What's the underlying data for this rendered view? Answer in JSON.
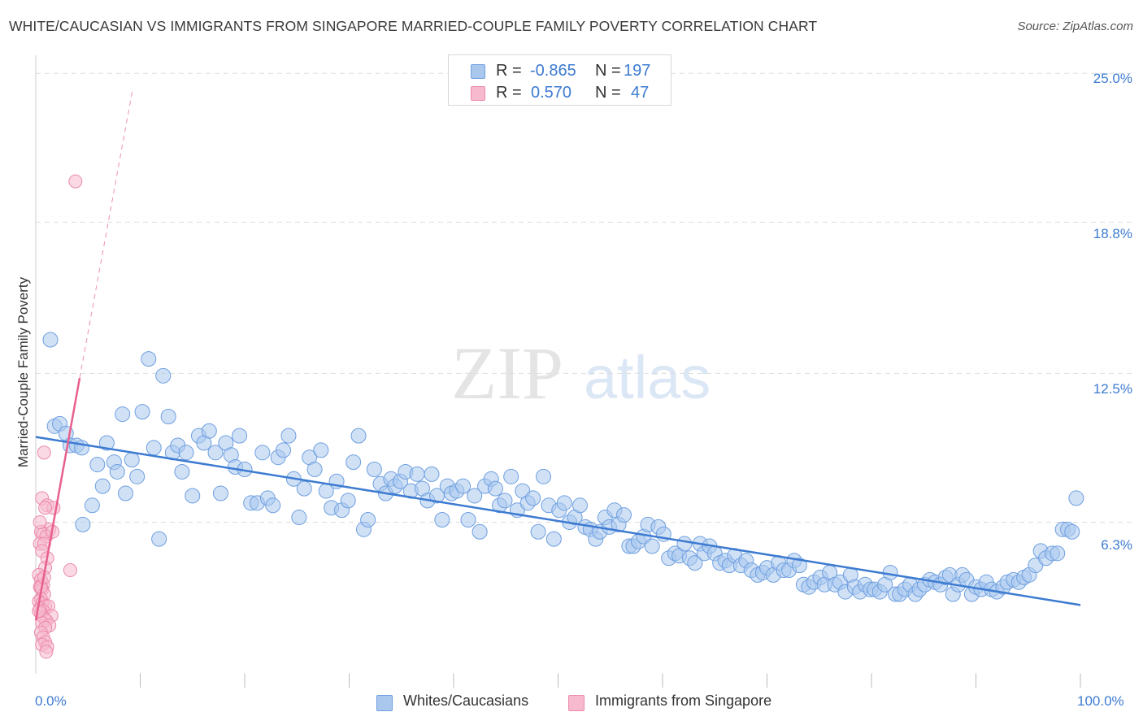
{
  "title": "WHITE/CAUCASIAN VS IMMIGRANTS FROM SINGAPORE MARRIED-COUPLE FAMILY POVERTY CORRELATION CHART",
  "source": "Source: ZipAtlas.com",
  "watermark": {
    "zip": "ZIP",
    "atlas": "atlas"
  },
  "stats": {
    "row1": {
      "r_label": "R =",
      "r_value": "-0.865",
      "n_label": "N =",
      "n_value": "197"
    },
    "row2": {
      "r_label": "R =",
      "r_value": "0.570",
      "n_label": "N =",
      "n_value": "47"
    }
  },
  "legend": {
    "blue_label": "Whites/Caucasians",
    "pink_label": "Immigrants from Singapore"
  },
  "colors": {
    "blue": "#3d7bd1",
    "blue_fill": "#aac8ee",
    "pink": "#e8608e",
    "pink_fill": "#f6b9cd",
    "grid": "#dddddd"
  },
  "chart_data": {
    "type": "scatter",
    "title": "WHITE/CAUCASIAN VS IMMIGRANTS FROM SINGAPORE MARRIED-COUPLE FAMILY POVERTY CORRELATION CHART",
    "xlabel": "",
    "ylabel": "Married-Couple Family Poverty",
    "xlim": [
      0,
      100
    ],
    "ylim": [
      0,
      25.6
    ],
    "x_tick_labels": [
      "0.0%",
      "100.0%"
    ],
    "y_ticks": [
      6.3,
      12.5,
      18.8,
      25.0
    ],
    "y_tick_labels": [
      "6.3%",
      "12.5%",
      "18.8%",
      "25.0%"
    ],
    "grid": "horizontal dashed",
    "legend_position": "bottom-center",
    "series": [
      {
        "name": "Whites/Caucasians",
        "color": "#3d7bd1",
        "trend": {
          "x": [
            0,
            100
          ],
          "y": [
            9.85,
            2.85
          ]
        },
        "points": [
          [
            1.4,
            13.9
          ],
          [
            1.8,
            10.3
          ],
          [
            2.3,
            10.4
          ],
          [
            2.9,
            10.0
          ],
          [
            3.3,
            9.5
          ],
          [
            3.9,
            9.5
          ],
          [
            4.4,
            9.4
          ],
          [
            4.5,
            6.2
          ],
          [
            5.4,
            7.0
          ],
          [
            5.9,
            8.7
          ],
          [
            6.4,
            7.8
          ],
          [
            6.8,
            9.6
          ],
          [
            7.5,
            8.8
          ],
          [
            7.8,
            8.4
          ],
          [
            8.3,
            10.8
          ],
          [
            8.6,
            7.5
          ],
          [
            9.2,
            8.9
          ],
          [
            9.7,
            8.2
          ],
          [
            10.2,
            10.9
          ],
          [
            10.8,
            13.1
          ],
          [
            11.3,
            9.4
          ],
          [
            11.8,
            5.6
          ],
          [
            12.2,
            12.4
          ],
          [
            12.7,
            10.7
          ],
          [
            13.1,
            9.2
          ],
          [
            13.6,
            9.5
          ],
          [
            14.0,
            8.4
          ],
          [
            14.4,
            9.2
          ],
          [
            15.0,
            7.4
          ],
          [
            15.6,
            9.9
          ],
          [
            16.1,
            9.6
          ],
          [
            16.6,
            10.1
          ],
          [
            17.2,
            9.2
          ],
          [
            17.7,
            7.5
          ],
          [
            18.2,
            9.6
          ],
          [
            18.7,
            9.1
          ],
          [
            19.1,
            8.6
          ],
          [
            19.5,
            9.9
          ],
          [
            20.0,
            8.5
          ],
          [
            20.6,
            7.1
          ],
          [
            21.2,
            7.1
          ],
          [
            21.7,
            9.2
          ],
          [
            22.2,
            7.3
          ],
          [
            22.7,
            7.0
          ],
          [
            23.2,
            9.0
          ],
          [
            23.7,
            9.3
          ],
          [
            24.2,
            9.9
          ],
          [
            24.7,
            8.1
          ],
          [
            25.2,
            6.5
          ],
          [
            25.7,
            7.7
          ],
          [
            26.2,
            9.0
          ],
          [
            26.7,
            8.5
          ],
          [
            27.3,
            9.3
          ],
          [
            27.8,
            7.6
          ],
          [
            28.3,
            6.9
          ],
          [
            28.8,
            8.0
          ],
          [
            29.3,
            6.8
          ],
          [
            29.9,
            7.2
          ],
          [
            30.4,
            8.8
          ],
          [
            30.9,
            9.9
          ],
          [
            31.4,
            6.0
          ],
          [
            31.8,
            6.4
          ],
          [
            32.4,
            8.5
          ],
          [
            33.0,
            7.9
          ],
          [
            33.5,
            7.5
          ],
          [
            34.0,
            8.1
          ],
          [
            34.4,
            7.8
          ],
          [
            34.9,
            8.0
          ],
          [
            35.4,
            8.4
          ],
          [
            35.9,
            7.6
          ],
          [
            36.5,
            8.3
          ],
          [
            37.0,
            7.7
          ],
          [
            37.5,
            7.2
          ],
          [
            37.9,
            8.3
          ],
          [
            38.4,
            7.4
          ],
          [
            38.9,
            6.4
          ],
          [
            39.4,
            7.8
          ],
          [
            39.8,
            7.5
          ],
          [
            40.3,
            7.6
          ],
          [
            40.9,
            7.8
          ],
          [
            41.4,
            6.4
          ],
          [
            42.0,
            7.4
          ],
          [
            42.5,
            5.9
          ],
          [
            43.0,
            7.8
          ],
          [
            43.6,
            8.1
          ],
          [
            44.0,
            7.7
          ],
          [
            44.4,
            7.0
          ],
          [
            44.9,
            7.2
          ],
          [
            45.5,
            8.2
          ],
          [
            46.1,
            6.8
          ],
          [
            46.6,
            7.6
          ],
          [
            47.1,
            7.1
          ],
          [
            47.6,
            7.3
          ],
          [
            48.1,
            5.9
          ],
          [
            48.6,
            8.2
          ],
          [
            49.1,
            7.0
          ],
          [
            49.6,
            5.6
          ],
          [
            50.1,
            6.8
          ],
          [
            50.6,
            7.1
          ],
          [
            51.1,
            6.3
          ],
          [
            51.6,
            6.5
          ],
          [
            52.1,
            7.0
          ],
          [
            52.6,
            6.1
          ],
          [
            53.1,
            6.0
          ],
          [
            53.6,
            5.6
          ],
          [
            54.0,
            5.9
          ],
          [
            54.5,
            6.5
          ],
          [
            54.9,
            6.1
          ],
          [
            55.4,
            6.8
          ],
          [
            55.8,
            6.2
          ],
          [
            56.3,
            6.6
          ],
          [
            56.8,
            5.3
          ],
          [
            57.2,
            5.3
          ],
          [
            57.7,
            5.5
          ],
          [
            58.2,
            5.7
          ],
          [
            58.6,
            6.2
          ],
          [
            59.0,
            5.3
          ],
          [
            59.6,
            6.1
          ],
          [
            60.1,
            5.8
          ],
          [
            60.6,
            4.8
          ],
          [
            61.2,
            5.0
          ],
          [
            61.6,
            4.9
          ],
          [
            62.1,
            5.4
          ],
          [
            62.6,
            4.8
          ],
          [
            63.1,
            4.6
          ],
          [
            63.6,
            5.4
          ],
          [
            64.0,
            5.0
          ],
          [
            64.5,
            5.3
          ],
          [
            65.0,
            5.0
          ],
          [
            65.5,
            4.6
          ],
          [
            66.0,
            4.7
          ],
          [
            66.4,
            4.5
          ],
          [
            66.9,
            4.9
          ],
          [
            67.5,
            4.5
          ],
          [
            68.0,
            4.7
          ],
          [
            68.5,
            4.3
          ],
          [
            69.1,
            4.1
          ],
          [
            69.6,
            4.2
          ],
          [
            70.0,
            4.4
          ],
          [
            70.6,
            4.1
          ],
          [
            71.1,
            4.6
          ],
          [
            71.6,
            4.3
          ],
          [
            72.1,
            4.3
          ],
          [
            72.6,
            4.7
          ],
          [
            73.1,
            4.5
          ],
          [
            73.5,
            3.7
          ],
          [
            74.0,
            3.6
          ],
          [
            74.5,
            3.8
          ],
          [
            75.1,
            4.0
          ],
          [
            75.5,
            3.7
          ],
          [
            76.0,
            4.2
          ],
          [
            76.5,
            3.7
          ],
          [
            77.0,
            3.8
          ],
          [
            77.5,
            3.4
          ],
          [
            78.0,
            4.1
          ],
          [
            78.4,
            3.6
          ],
          [
            78.9,
            3.4
          ],
          [
            79.4,
            3.7
          ],
          [
            79.9,
            3.5
          ],
          [
            80.3,
            3.5
          ],
          [
            80.8,
            3.4
          ],
          [
            81.3,
            3.7
          ],
          [
            81.8,
            4.2
          ],
          [
            82.3,
            3.3
          ],
          [
            82.7,
            3.3
          ],
          [
            83.2,
            3.5
          ],
          [
            83.7,
            3.7
          ],
          [
            84.2,
            3.3
          ],
          [
            84.6,
            3.5
          ],
          [
            85.1,
            3.7
          ],
          [
            85.6,
            3.9
          ],
          [
            86.1,
            3.8
          ],
          [
            86.6,
            3.7
          ],
          [
            87.1,
            4.0
          ],
          [
            87.5,
            4.1
          ],
          [
            87.8,
            3.3
          ],
          [
            88.3,
            3.7
          ],
          [
            88.7,
            4.1
          ],
          [
            89.1,
            3.9
          ],
          [
            89.6,
            3.3
          ],
          [
            90.0,
            3.6
          ],
          [
            90.5,
            3.5
          ],
          [
            91.0,
            3.8
          ],
          [
            91.5,
            3.5
          ],
          [
            92.0,
            3.4
          ],
          [
            92.6,
            3.6
          ],
          [
            93.0,
            3.8
          ],
          [
            93.6,
            3.9
          ],
          [
            94.1,
            3.8
          ],
          [
            94.6,
            4.0
          ],
          [
            95.1,
            4.1
          ],
          [
            95.7,
            4.5
          ],
          [
            96.2,
            5.1
          ],
          [
            96.7,
            4.8
          ],
          [
            97.3,
            5.0
          ],
          [
            97.8,
            5.0
          ],
          [
            98.3,
            6.0
          ],
          [
            98.8,
            6.0
          ],
          [
            99.2,
            5.9
          ],
          [
            99.6,
            7.3
          ]
        ]
      },
      {
        "name": "Immigrants from Singapore",
        "color": "#e8608e",
        "trend": {
          "x": [
            0.0,
            4.2
          ],
          "y": [
            2.2,
            12.3
          ]
        },
        "trend_extension": {
          "x": [
            4.2,
            9.3
          ],
          "y": [
            12.3,
            24.4
          ]
        },
        "points": [
          [
            3.8,
            20.5
          ],
          [
            0.8,
            9.2
          ],
          [
            0.6,
            7.3
          ],
          [
            1.1,
            7.0
          ],
          [
            1.7,
            6.9
          ],
          [
            0.9,
            6.9
          ],
          [
            1.3,
            6.0
          ],
          [
            0.5,
            5.9
          ],
          [
            0.7,
            5.8
          ],
          [
            1.0,
            5.7
          ],
          [
            0.4,
            5.4
          ],
          [
            0.8,
            5.4
          ],
          [
            0.6,
            5.1
          ],
          [
            1.1,
            4.8
          ],
          [
            0.9,
            4.4
          ],
          [
            3.3,
            4.3
          ],
          [
            0.3,
            4.1
          ],
          [
            0.5,
            3.9
          ],
          [
            0.7,
            3.7
          ],
          [
            0.4,
            3.6
          ],
          [
            0.6,
            3.5
          ],
          [
            0.8,
            3.3
          ],
          [
            0.5,
            3.1
          ],
          [
            0.3,
            3.0
          ],
          [
            0.6,
            2.9
          ],
          [
            0.9,
            2.8
          ],
          [
            1.2,
            2.8
          ],
          [
            0.4,
            2.7
          ],
          [
            0.7,
            2.6
          ],
          [
            0.5,
            2.5
          ],
          [
            1.5,
            2.4
          ],
          [
            0.8,
            2.3
          ],
          [
            1.0,
            2.2
          ],
          [
            0.6,
            2.1
          ],
          [
            1.3,
            2.0
          ],
          [
            0.9,
            1.9
          ],
          [
            0.5,
            1.7
          ],
          [
            0.7,
            1.5
          ],
          [
            0.9,
            1.3
          ],
          [
            0.6,
            1.2
          ],
          [
            1.1,
            1.1
          ],
          [
            1.0,
            0.9
          ],
          [
            0.3,
            2.6
          ],
          [
            0.5,
            3.6
          ],
          [
            0.8,
            4.0
          ],
          [
            1.6,
            5.9
          ],
          [
            0.4,
            6.3
          ]
        ]
      }
    ]
  }
}
